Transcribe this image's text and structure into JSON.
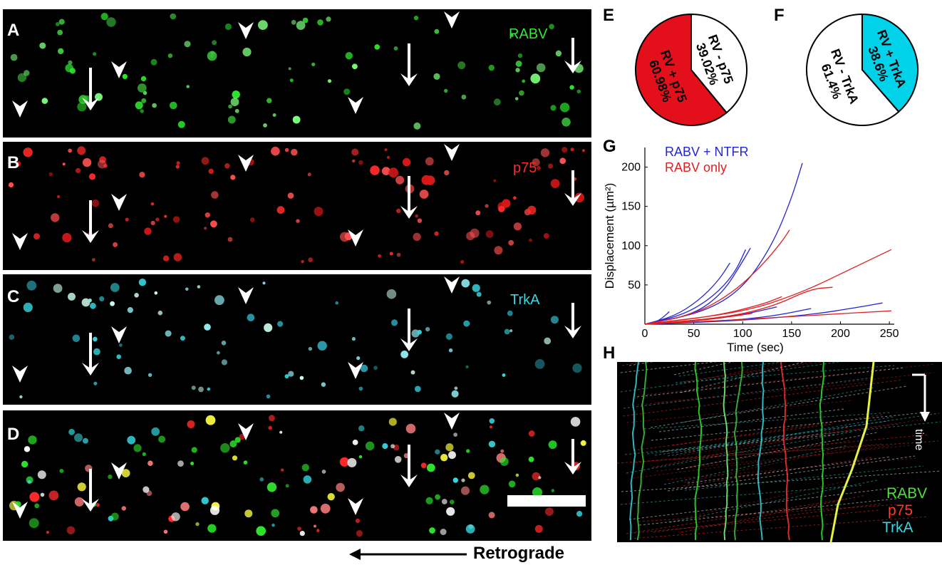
{
  "panels": {
    "A": {
      "label": "A",
      "channel": "RABV",
      "color": "#2ee82e"
    },
    "B": {
      "label": "B",
      "channel": "p75",
      "color": "#ff2a2a"
    },
    "C": {
      "label": "C",
      "channel": "TrkA",
      "color": "#35d8e0"
    },
    "D": {
      "label": "D"
    },
    "E": {
      "label": "E"
    },
    "F": {
      "label": "F"
    },
    "G": {
      "label": "G"
    },
    "H": {
      "label": "H"
    }
  },
  "retrograde_label": "Retrograde",
  "kymograph": {
    "time_label": "time",
    "legend": [
      {
        "text": "RABV",
        "color": "#4fe03a"
      },
      {
        "text": "p75",
        "color": "#ff3a2a"
      },
      {
        "text": "TrkA",
        "color": "#35d8e0"
      }
    ]
  },
  "chart_data": [
    {
      "type": "pie",
      "panel": "E",
      "slices": [
        {
          "label_line1": "RV + p75",
          "label_line2": "60.98%",
          "value": 60.98,
          "color": "#e3101b"
        },
        {
          "label_line1": "RV - p75",
          "label_line2": "39.02%",
          "value": 39.02,
          "color": "#ffffff"
        }
      ]
    },
    {
      "type": "pie",
      "panel": "F",
      "slices": [
        {
          "label_line1": "RV + TrkA",
          "label_line2": "38.6%",
          "value": 38.6,
          "color": "#00d2ea"
        },
        {
          "label_line1": "RV - TrkA",
          "label_line2": "61.4%",
          "value": 61.4,
          "color": "#ffffff"
        }
      ]
    },
    {
      "type": "line",
      "panel": "G",
      "xlabel": "Time (sec)",
      "ylabel": "Displacement (µm²)",
      "xlim": [
        0,
        255
      ],
      "ylim": [
        0,
        225
      ],
      "xticks": [
        0,
        50,
        100,
        150,
        200,
        250
      ],
      "yticks": [
        50,
        100,
        150,
        200
      ],
      "legend": [
        {
          "text": "RABV + NTFR",
          "color": "#2525d8"
        },
        {
          "text": "RABV only",
          "color": "#e02020"
        }
      ],
      "series": [
        {
          "group": "RABV + NTFR",
          "color": "#2525d8",
          "points": [
            [
              0,
              0
            ],
            [
              10,
              2
            ],
            [
              18,
              8
            ],
            [
              25,
              16
            ]
          ]
        },
        {
          "group": "RABV + NTFR",
          "color": "#2525d8",
          "points": [
            [
              0,
              0
            ],
            [
              30,
              10
            ],
            [
              55,
              30
            ],
            [
              75,
              55
            ],
            [
              87,
              78
            ]
          ]
        },
        {
          "group": "RABV + NTFR",
          "color": "#2525d8",
          "points": [
            [
              0,
              0
            ],
            [
              40,
              12
            ],
            [
              70,
              35
            ],
            [
              92,
              65
            ],
            [
              103,
              95
            ]
          ]
        },
        {
          "group": "RABV + NTFR",
          "color": "#2525d8",
          "points": [
            [
              0,
              0
            ],
            [
              50,
              12
            ],
            [
              80,
              40
            ],
            [
              100,
              80
            ],
            [
              108,
              97
            ]
          ]
        },
        {
          "group": "RABV + NTFR",
          "color": "#2525d8",
          "points": [
            [
              0,
              0
            ],
            [
              60,
              15
            ],
            [
              100,
              45
            ],
            [
              130,
              100
            ],
            [
              150,
              160
            ],
            [
              161,
              205
            ]
          ]
        },
        {
          "group": "RABV + NTFR",
          "color": "#2525d8",
          "points": [
            [
              0,
              0
            ],
            [
              60,
              5
            ],
            [
              100,
              12
            ],
            [
              135,
              22
            ]
          ]
        },
        {
          "group": "RABV + NTFR",
          "color": "#2525d8",
          "points": [
            [
              0,
              0
            ],
            [
              80,
              4
            ],
            [
              130,
              10
            ],
            [
              170,
              20
            ]
          ]
        },
        {
          "group": "RABV + NTFR",
          "color": "#2525d8",
          "points": [
            [
              0,
              0
            ],
            [
              90,
              4
            ],
            [
              170,
              12
            ],
            [
              220,
              22
            ],
            [
              243,
              27
            ]
          ]
        },
        {
          "group": "RABV only",
          "color": "#e02020",
          "points": [
            [
              0,
              0
            ],
            [
              50,
              12
            ],
            [
              90,
              40
            ],
            [
              120,
              75
            ],
            [
              140,
              105
            ],
            [
              148,
              120
            ]
          ]
        },
        {
          "group": "RABV only",
          "color": "#e02020",
          "points": [
            [
              0,
              0
            ],
            [
              70,
              10
            ],
            [
              120,
              25
            ],
            [
              140,
              35
            ]
          ]
        },
        {
          "group": "RABV only",
          "color": "#e02020",
          "points": [
            [
              0,
              0
            ],
            [
              80,
              8
            ],
            [
              130,
              22
            ],
            [
              170,
              45
            ],
            [
              192,
              47
            ]
          ]
        },
        {
          "group": "RABV only",
          "color": "#e02020",
          "points": [
            [
              0,
              0
            ],
            [
              100,
              15
            ],
            [
              160,
              40
            ],
            [
              210,
              70
            ],
            [
              252,
              95
            ]
          ]
        },
        {
          "group": "RABV only",
          "color": "#e02020",
          "points": [
            [
              0,
              0
            ],
            [
              100,
              6
            ],
            [
              180,
              12
            ],
            [
              252,
              17
            ]
          ]
        },
        {
          "group": "RABV only",
          "color": "#e02020",
          "points": [
            [
              0,
              0
            ],
            [
              50,
              4
            ],
            [
              90,
              10
            ],
            [
              110,
              14
            ]
          ]
        }
      ]
    }
  ]
}
